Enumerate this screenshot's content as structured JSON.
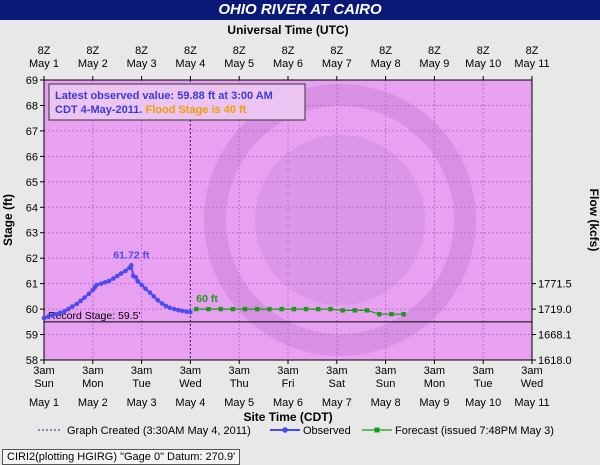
{
  "title": "OHIO RIVER AT CAIRO",
  "footer": "CIRI2(plotting HGIRG) \"Gage 0\" Datum: 270.9'",
  "colors": {
    "plot_bg": "#e8a0f0",
    "title_bar": "#0a1878",
    "observed": "#4a4af0",
    "forecast": "#1a9a1a",
    "flood_stage_text": "#f0a000",
    "annotation_text": "#3a3ad8"
  },
  "chart_data": {
    "type": "line",
    "top_axis_label": "Universal Time (UTC)",
    "top_ticks": [
      [
        "8Z",
        "May 1"
      ],
      [
        "8Z",
        "May 2"
      ],
      [
        "8Z",
        "May 3"
      ],
      [
        "8Z",
        "May 4"
      ],
      [
        "8Z",
        "May 5"
      ],
      [
        "8Z",
        "May 6"
      ],
      [
        "8Z",
        "May 7"
      ],
      [
        "8Z",
        "May 8"
      ],
      [
        "8Z",
        "May 9"
      ],
      [
        "8Z",
        "May 10"
      ],
      [
        "8Z",
        "May 11"
      ]
    ],
    "xlabel": "Site Time (CDT)",
    "bottom_ticks": [
      [
        "3am",
        "Sun",
        "May 1"
      ],
      [
        "3am",
        "Mon",
        "May 2"
      ],
      [
        "3am",
        "Tue",
        "May 3"
      ],
      [
        "3am",
        "Wed",
        "May 4"
      ],
      [
        "3am",
        "Thu",
        "May 5"
      ],
      [
        "3am",
        "Fri",
        "May 6"
      ],
      [
        "3am",
        "Sat",
        "May 7"
      ],
      [
        "3am",
        "Sun",
        "May 8"
      ],
      [
        "3am",
        "Mon",
        "May 9"
      ],
      [
        "3am",
        "Tue",
        "May 10"
      ],
      [
        "3am",
        "Wed",
        "May 11"
      ]
    ],
    "ylabel": "Stage (ft)",
    "ylim": [
      58,
      69
    ],
    "yticks": [
      58,
      59,
      60,
      61,
      62,
      63,
      64,
      65,
      66,
      67,
      68,
      69
    ],
    "y2label": "Flow (kcfs)",
    "y2ticks": [
      {
        "stage": 61,
        "label": "1771.5"
      },
      {
        "stage": 60,
        "label": "1719.0"
      },
      {
        "stage": 59,
        "label": "1668.1"
      },
      {
        "stage": 58,
        "label": "1618.0"
      }
    ],
    "xlim_days": [
      0,
      10
    ],
    "annotation": {
      "line1": "Latest observed value: 59.88 ft at 3:00 AM",
      "line2_prefix": "CDT 4-May-2011.",
      "line2_flood": "Flood Stage is 40 ft"
    },
    "record_stage": {
      "label": "Record Stage: 59.5'",
      "value": 59.5
    },
    "peak_label": "61.72 ft",
    "peak": {
      "day": 1.79,
      "stage": 61.72
    },
    "forecast_label": "60 ft",
    "graph_created_day": 3.0,
    "observed": {
      "name": "Observed",
      "points": [
        [
          0.0,
          59.65
        ],
        [
          0.08,
          59.7
        ],
        [
          0.17,
          59.75
        ],
        [
          0.25,
          59.8
        ],
        [
          0.33,
          59.85
        ],
        [
          0.42,
          59.92
        ],
        [
          0.5,
          60.0
        ],
        [
          0.58,
          60.1
        ],
        [
          0.67,
          60.2
        ],
        [
          0.75,
          60.32
        ],
        [
          0.83,
          60.45
        ],
        [
          0.92,
          60.6
        ],
        [
          1.0,
          60.75
        ],
        [
          1.04,
          60.85
        ],
        [
          1.08,
          60.95
        ],
        [
          1.17,
          61.0
        ],
        [
          1.25,
          61.05
        ],
        [
          1.33,
          61.1
        ],
        [
          1.42,
          61.2
        ],
        [
          1.5,
          61.3
        ],
        [
          1.58,
          61.4
        ],
        [
          1.67,
          61.5
        ],
        [
          1.75,
          61.62
        ],
        [
          1.79,
          61.72
        ],
        [
          1.83,
          61.3
        ],
        [
          1.88,
          61.25
        ],
        [
          1.92,
          61.1
        ],
        [
          2.0,
          60.95
        ],
        [
          2.08,
          60.8
        ],
        [
          2.17,
          60.65
        ],
        [
          2.25,
          60.5
        ],
        [
          2.33,
          60.35
        ],
        [
          2.42,
          60.22
        ],
        [
          2.5,
          60.12
        ],
        [
          2.58,
          60.05
        ],
        [
          2.67,
          60.0
        ],
        [
          2.75,
          59.96
        ],
        [
          2.83,
          59.93
        ],
        [
          2.92,
          59.9
        ],
        [
          3.0,
          59.88
        ]
      ]
    },
    "forecast": {
      "name": "Forecast",
      "points": [
        [
          3.12,
          60.0
        ],
        [
          3.37,
          60.0
        ],
        [
          3.62,
          60.0
        ],
        [
          3.87,
          60.0
        ],
        [
          4.12,
          60.0
        ],
        [
          4.37,
          60.0
        ],
        [
          4.62,
          60.0
        ],
        [
          4.87,
          60.0
        ],
        [
          5.12,
          60.0
        ],
        [
          5.37,
          60.0
        ],
        [
          5.62,
          60.0
        ],
        [
          5.87,
          60.0
        ],
        [
          6.12,
          59.95
        ],
        [
          6.37,
          59.95
        ],
        [
          6.62,
          59.95
        ],
        [
          6.87,
          59.8
        ],
        [
          7.12,
          59.8
        ],
        [
          7.37,
          59.8
        ]
      ]
    },
    "legend": {
      "graph_created": "Graph Created (3:30AM May 4, 2011)",
      "observed": "Observed",
      "forecast": "Forecast (issued 7:48PM May 3)"
    }
  }
}
